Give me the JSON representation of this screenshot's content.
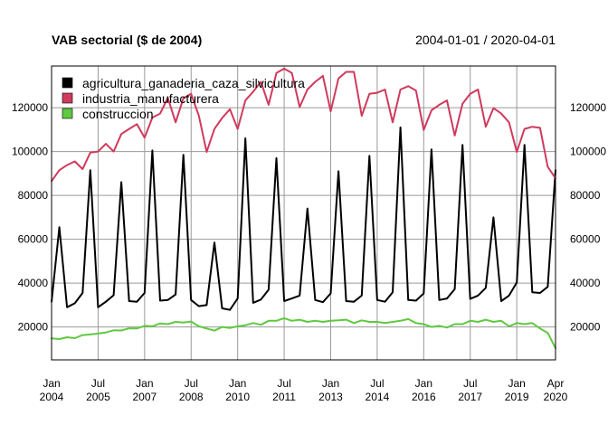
{
  "chart_data": {
    "type": "line",
    "title": "VAB sectorial ($ de 2004)",
    "date_range": "2004-01-01 / 2020-04-01",
    "xlabel": "",
    "ylabel": "",
    "ylim": [
      5000,
      139000
    ],
    "y_ticks": [
      {
        "value": 20000,
        "label": "20000"
      },
      {
        "value": 40000,
        "label": "40000"
      },
      {
        "value": 60000,
        "label": "60000"
      },
      {
        "value": 80000,
        "label": "80000"
      },
      {
        "value": 100000,
        "label": "100000"
      },
      {
        "value": 120000,
        "label": "120000"
      }
    ],
    "x_ticks": [
      {
        "date": "2004-01",
        "month": "Jan",
        "year": "2004"
      },
      {
        "date": "2005-07",
        "month": "Jul",
        "year": "2005"
      },
      {
        "date": "2007-01",
        "month": "Jan",
        "year": "2007"
      },
      {
        "date": "2008-07",
        "month": "Jul",
        "year": "2008"
      },
      {
        "date": "2010-01",
        "month": "Jan",
        "year": "2010"
      },
      {
        "date": "2011-07",
        "month": "Jul",
        "year": "2011"
      },
      {
        "date": "2013-01",
        "month": "Jan",
        "year": "2013"
      },
      {
        "date": "2014-07",
        "month": "Jul",
        "year": "2014"
      },
      {
        "date": "2016-01",
        "month": "Jan",
        "year": "2016"
      },
      {
        "date": "2017-07",
        "month": "Jul",
        "year": "2017"
      },
      {
        "date": "2019-01",
        "month": "Jan",
        "year": "2019"
      },
      {
        "date": "2020-04",
        "month": "Apr",
        "year": "2020"
      }
    ],
    "grid": true,
    "legend_position": "top-left",
    "frequency": "quarterly",
    "x": [
      "2004-01",
      "2004-04",
      "2004-07",
      "2004-10",
      "2005-01",
      "2005-04",
      "2005-07",
      "2005-10",
      "2006-01",
      "2006-04",
      "2006-07",
      "2006-10",
      "2007-01",
      "2007-04",
      "2007-07",
      "2007-10",
      "2008-01",
      "2008-04",
      "2008-07",
      "2008-10",
      "2009-01",
      "2009-04",
      "2009-07",
      "2009-10",
      "2010-01",
      "2010-04",
      "2010-07",
      "2010-10",
      "2011-01",
      "2011-04",
      "2011-07",
      "2011-10",
      "2012-01",
      "2012-04",
      "2012-07",
      "2012-10",
      "2013-01",
      "2013-04",
      "2013-07",
      "2013-10",
      "2014-01",
      "2014-04",
      "2014-07",
      "2014-10",
      "2015-01",
      "2015-04",
      "2015-07",
      "2015-10",
      "2016-01",
      "2016-04",
      "2016-07",
      "2016-10",
      "2017-01",
      "2017-04",
      "2017-07",
      "2017-10",
      "2018-01",
      "2018-04",
      "2018-07",
      "2018-10",
      "2019-01",
      "2019-04",
      "2019-07",
      "2019-10",
      "2020-01",
      "2020-04"
    ],
    "series": [
      {
        "name": "agricultura_ganaderia_caza_silvicultura",
        "color": "#000000",
        "values": [
          31500,
          65500,
          29000,
          30800,
          35500,
          91500,
          29000,
          31500,
          34500,
          86000,
          31800,
          31500,
          35500,
          100500,
          32000,
          32300,
          34800,
          98500,
          32300,
          29500,
          30000,
          58500,
          28500,
          27800,
          33000,
          106000,
          31000,
          32500,
          37000,
          97000,
          31800,
          33000,
          34300,
          74000,
          32300,
          31300,
          35300,
          91000,
          31800,
          31500,
          34300,
          98000,
          32300,
          31500,
          35800,
          111000,
          32300,
          32000,
          35300,
          101000,
          32300,
          33000,
          37300,
          103000,
          32800,
          34300,
          37800,
          70000,
          31800,
          34300,
          40300,
          103000,
          35800,
          35500,
          38300,
          91500
        ]
      },
      {
        "name": "industria_manufacturera",
        "color": "#D03A5C",
        "values": [
          86500,
          91500,
          93800,
          95500,
          92000,
          99500,
          100000,
          103500,
          100000,
          108000,
          110300,
          112500,
          106300,
          115500,
          117300,
          124500,
          113300,
          124300,
          126300,
          116300,
          99800,
          110300,
          115300,
          119300,
          110300,
          123300,
          127300,
          131800,
          121300,
          135800,
          137800,
          135800,
          120300,
          128300,
          131800,
          134500,
          118300,
          133300,
          136300,
          136300,
          116300,
          126300,
          126800,
          128300,
          113300,
          128300,
          129800,
          127800,
          109800,
          118800,
          121300,
          123300,
          107300,
          121800,
          126300,
          128300,
          111300,
          119800,
          117300,
          113300,
          99800,
          110300,
          111300,
          110800,
          93000,
          87800
        ]
      },
      {
        "name": "construccion",
        "color": "#5FC940",
        "values": [
          14800,
          14500,
          15300,
          14900,
          16300,
          16600,
          17000,
          17500,
          18500,
          18400,
          19400,
          19300,
          20500,
          20300,
          21600,
          21300,
          22300,
          22000,
          22500,
          20300,
          19300,
          18300,
          20000,
          19500,
          20300,
          20800,
          21800,
          21000,
          22800,
          22800,
          24000,
          22800,
          23300,
          22300,
          22800,
          22300,
          22800,
          23000,
          23300,
          21800,
          23000,
          22300,
          22300,
          21800,
          22300,
          22800,
          23600,
          21800,
          21300,
          20000,
          20500,
          19700,
          21300,
          21300,
          22800,
          22300,
          23300,
          22300,
          22800,
          20300,
          21800,
          21300,
          21800,
          19300,
          17300,
          10300
        ]
      }
    ]
  }
}
